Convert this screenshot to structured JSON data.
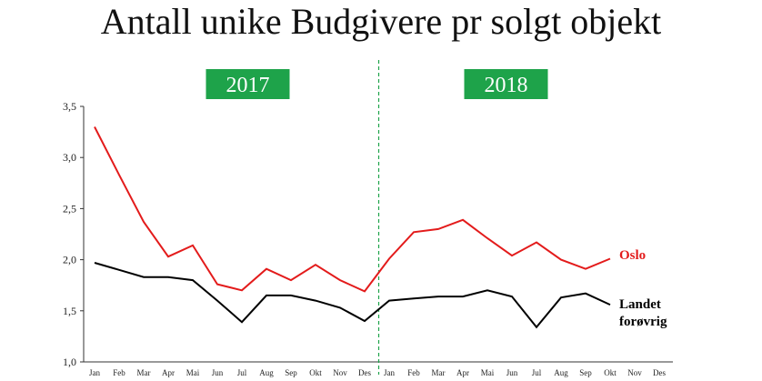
{
  "chart_data": {
    "type": "line",
    "title": "Antall unike Budgivere pr solgt objekt",
    "xlabel": "",
    "ylabel": "",
    "ylim": [
      1.0,
      3.5
    ],
    "yticks": [
      "1,0",
      "1,5",
      "2,0",
      "2,5",
      "3,0",
      "3,5"
    ],
    "grid": false,
    "period_labels": [
      "2017",
      "2018"
    ],
    "period_label_color": "#1ea34a",
    "divider_color": "#1ea34a",
    "categories": [
      "Jan",
      "Feb",
      "Mar",
      "Apr",
      "Mai",
      "Jun",
      "Jul",
      "Aug",
      "Sep",
      "Okt",
      "Nov",
      "Des",
      "Jan",
      "Feb",
      "Mar",
      "Apr",
      "Mai",
      "Jun",
      "Jul",
      "Aug",
      "Sep",
      "Okt",
      "Nov",
      "Des"
    ],
    "series": [
      {
        "name": "Oslo",
        "color": "#e31b1b",
        "values": [
          3.3,
          2.83,
          2.37,
          2.03,
          2.14,
          1.76,
          1.7,
          1.91,
          1.8,
          1.95,
          1.8,
          1.69,
          2.01,
          2.27,
          2.3,
          2.39,
          2.21,
          2.04,
          2.17,
          2.0,
          1.91,
          2.01,
          null,
          null
        ]
      },
      {
        "name": "Landet forøvrig",
        "color": "#000000",
        "values": [
          1.97,
          1.9,
          1.83,
          1.83,
          1.8,
          1.6,
          1.39,
          1.65,
          1.65,
          1.6,
          1.53,
          1.4,
          1.6,
          1.62,
          1.64,
          1.64,
          1.7,
          1.64,
          1.34,
          1.63,
          1.67,
          1.56,
          null,
          null
        ]
      }
    ],
    "legend": {
      "oslo_label": "Oslo",
      "landet_line1": "Landet",
      "landet_line2": "forøvrig"
    }
  }
}
